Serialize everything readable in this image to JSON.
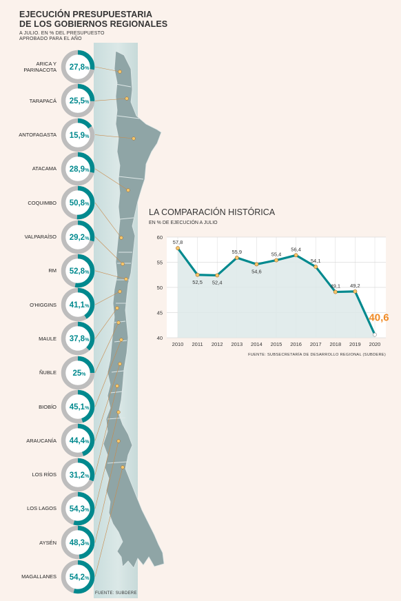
{
  "header": {
    "title_line1": "EJECUCIÓN PRESUPUESTARIA",
    "title_line2": "DE LOS GOBIERNOS REGIONALES",
    "subtitle_line1": "A JULIO. EN % DEL PRESUPUESTO",
    "subtitle_line2": "APROBADO PARA EL AÑO"
  },
  "colors": {
    "teal": "#00898e",
    "grey_ring": "#bdbdbd",
    "map_fill": "#8fa5a6",
    "highlight": "#f08a24",
    "dot": "#f6c66a"
  },
  "regions_source": "FUENTE: SUBDERE",
  "chart_data": [
    {
      "type": "pie",
      "variant": "donut",
      "unit": "%",
      "categories": [
        "ARICA Y PARINACOTA",
        "TARAPACÁ",
        "ANTOFAGASTA",
        "ATACAMA",
        "COQUIMBO",
        "VALPARAÍSO",
        "RM",
        "O'HIGGINS",
        "MAULE",
        "ÑUBLE",
        "BIOBÍO",
        "ARAUCANÍA",
        "LOS RÍOS",
        "LOS LAGOS",
        "AYSÉN",
        "MAGALLANES"
      ],
      "values": [
        27.8,
        25.5,
        15.9,
        28.9,
        50.8,
        29.2,
        52.8,
        41.1,
        37.8,
        25,
        45.1,
        44.4,
        31.2,
        54.3,
        48.3,
        54.2
      ],
      "value_labels": [
        "27,8",
        "25,5",
        "15,9",
        "28,9",
        "50,8",
        "29,2",
        "52,8",
        "41,1",
        "37,8",
        "25",
        "45,1",
        "44,4",
        "31,2",
        "54,3",
        "48,3",
        "54,2"
      ]
    },
    {
      "type": "line",
      "title": "LA COMPARACIÓN HISTÓRICA",
      "subtitle": "EN % DE EJECUCIÓN A JULIO",
      "x": [
        2010,
        2011,
        2012,
        2013,
        2014,
        2015,
        2016,
        2017,
        2018,
        2019,
        2020
      ],
      "values": [
        57.8,
        52.5,
        52.4,
        55.9,
        54.6,
        55.4,
        56.4,
        54.1,
        49.1,
        49.2,
        40.6
      ],
      "value_labels": [
        "57,8",
        "52,5",
        "52,4",
        "55,9",
        "54,6",
        "55,4",
        "56,4",
        "54,1",
        "49,1",
        "49,2",
        "40,6"
      ],
      "ylim": [
        40,
        60
      ],
      "yticks": [
        40,
        45,
        50,
        55,
        60
      ],
      "grid": true,
      "highlight_last": true,
      "source": "FUENTE: SUBSECRETARÍA DE DESARROLLO REGIONAL (SUBDERE)"
    }
  ]
}
